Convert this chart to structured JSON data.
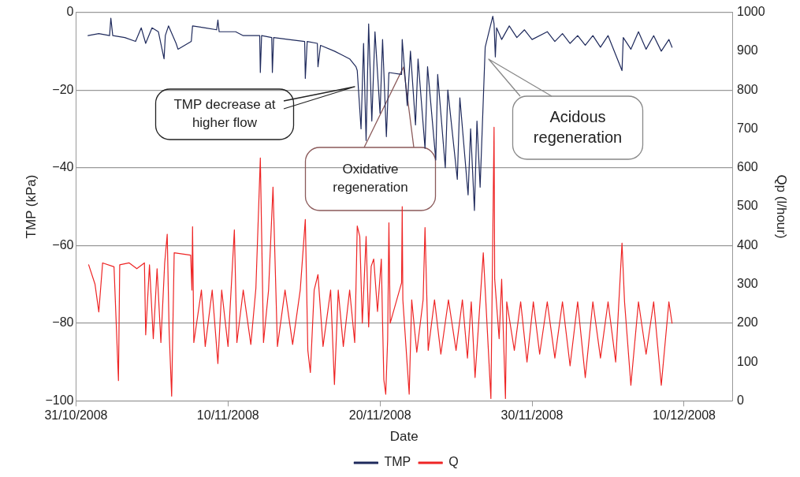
{
  "chart_data": {
    "type": "line",
    "xlabel": "Date",
    "ylabel": "TMP (kPa)",
    "y2label": "Qp (l/hour)",
    "xlim": [
      "2008-10-31",
      "2008-12-13T04:00"
    ],
    "xticks": [
      {
        "value": "2008-10-31",
        "label": "31/10/2008"
      },
      {
        "value": "2008-11-10",
        "label": "10/11/2008"
      },
      {
        "value": "2008-11-20",
        "label": "20/11/2008"
      },
      {
        "value": "2008-11-30",
        "label": "30/11/2008"
      },
      {
        "value": "2008-12-10",
        "label": "10/12/2008"
      }
    ],
    "ylim": [
      -100,
      0
    ],
    "yticks": [
      {
        "value": -100,
        "label": "−100"
      },
      {
        "value": -80,
        "label": "−80"
      },
      {
        "value": -60,
        "label": "−60"
      },
      {
        "value": -40,
        "label": "−40"
      },
      {
        "value": -20,
        "label": "−20"
      },
      0
    ],
    "y2lim": [
      0,
      1000
    ],
    "y2ticks": [
      0,
      100,
      200,
      300,
      400,
      500,
      600,
      700,
      800,
      900,
      1000
    ],
    "grid": "y",
    "legend": "bottom",
    "marker": "none",
    "line_style": "solid",
    "annotations": [
      "TMP decrease at higher flow",
      "Oxidative regeneration",
      "Acidous regeneration"
    ],
    "series": [
      {
        "name": "TMP",
        "color": "#1f2a5c",
        "x": [
          "2008-10-31T19:00",
          "2008-11-01T12:00",
          "2008-11-02T05:00",
          "2008-11-02T07:00",
          "2008-11-02T10:00",
          "2008-11-03T05:00",
          "2008-11-03T22:00",
          "2008-11-04T07:00",
          "2008-11-04T14:00",
          "2008-11-05T00:00",
          "2008-11-05T10:00",
          "2008-11-05T19:00",
          "2008-11-05T21:00",
          "2008-11-06T02:00",
          "2008-11-06T14:00",
          "2008-11-06T17:00",
          "2008-11-07T14:00",
          "2008-11-07T16:00",
          "2008-11-08T12:00",
          "2008-11-09T06:00",
          "2008-11-09T08:00",
          "2008-11-09T10:00",
          "2008-11-10T12:00",
          "2008-11-11T00:00",
          "2008-11-12T02:00",
          "2008-11-12T03:00",
          "2008-11-12T05:00",
          "2008-11-12T21:00",
          "2008-11-12T22:00",
          "2008-11-13T00:00",
          "2008-11-14T00:00",
          "2008-11-15T01:00",
          "2008-11-15T02:00",
          "2008-11-15T05:00",
          "2008-11-15T21:00",
          "2008-11-15T22:00",
          "2008-11-16T02:00",
          "2008-11-17T00:00",
          "2008-11-17T12:00",
          "2008-11-18T00:00",
          "2008-11-18T10:00",
          "2008-11-18T12:00",
          "2008-11-18T18:00",
          "2008-11-18T22:00",
          "2008-11-19T02:00",
          "2008-11-19T06:00",
          "2008-11-19T11:00",
          "2008-11-19T16:00",
          "2008-11-20T00:00",
          "2008-11-20T04:00",
          "2008-11-20T10:00",
          "2008-11-20T14:00",
          "2008-11-21T10:00",
          "2008-11-21T11:00",
          "2008-11-21T19:00",
          "2008-11-22T00:00",
          "2008-11-22T08:00",
          "2008-11-22T12:00",
          "2008-11-22T23:00",
          "2008-11-23T03:00",
          "2008-11-23T16:00",
          "2008-11-23T19:00",
          "2008-11-24T07:00",
          "2008-11-24T11:00",
          "2008-11-25T02:00",
          "2008-11-25T06:00",
          "2008-11-25T19:00",
          "2008-11-25T23:00",
          "2008-11-26T05:00",
          "2008-11-26T09:00",
          "2008-11-26T14:00",
          "2008-11-26T22:00",
          "2008-11-27T10:00",
          "2008-11-27T12:00",
          "2008-11-27T14:00",
          "2008-11-27T16:00",
          "2008-11-28T00:00",
          "2008-11-28T12:00",
          "2008-11-29T00:00",
          "2008-11-29T12:00",
          "2008-11-30T00:00",
          "2008-12-01T00:00",
          "2008-12-01T12:00",
          "2008-12-02T00:00",
          "2008-12-02T12:00",
          "2008-12-03T00:00",
          "2008-12-03T12:00",
          "2008-12-04T00:00",
          "2008-12-04T12:00",
          "2008-12-05T00:00",
          "2008-12-05T22:00",
          "2008-12-06T00:00",
          "2008-12-06T12:00",
          "2008-12-07T00:00",
          "2008-12-07T12:00",
          "2008-12-08T00:00",
          "2008-12-08T12:00",
          "2008-12-09T00:00",
          "2008-12-09T05:00"
        ],
        "values": [
          -6,
          -5.5,
          -6,
          -1.5,
          -6,
          -6.5,
          -7.5,
          -4,
          -8,
          -4,
          -5,
          -12,
          -6,
          -3.5,
          -8,
          -9.5,
          -7.5,
          -3.5,
          -4,
          -4.5,
          -2,
          -5,
          -5,
          -6,
          -6,
          -15.5,
          -6,
          -6.5,
          -15.5,
          -6.5,
          -7,
          -7.5,
          -17,
          -7.5,
          -8,
          -14,
          -8.5,
          -10,
          -11,
          -12,
          -14,
          -15,
          -30,
          -8,
          -33,
          -3,
          -28,
          -5,
          -26,
          -7,
          -32,
          -15.5,
          -16,
          -7,
          -24,
          -10,
          -29,
          -12,
          -35,
          -14,
          -38,
          -16,
          -40,
          -20,
          -43,
          -22,
          -47,
          -30,
          -51,
          -28,
          -45,
          -9,
          -1,
          -3,
          -11.5,
          -4,
          -7,
          -3.5,
          -6.5,
          -4.5,
          -7,
          -5,
          -7.5,
          -5.5,
          -8,
          -6,
          -8.5,
          -6,
          -9,
          -6,
          -15,
          -6.5,
          -9.5,
          -5,
          -9.5,
          -6,
          -10,
          -7,
          -9
        ]
      },
      {
        "name": "Q",
        "color": "#ee2424",
        "axis": "y2",
        "x": [
          "2008-10-31T20:00",
          "2008-11-01T06:00",
          "2008-11-01T12:00",
          "2008-11-01T18:00",
          "2008-11-02T12:00",
          "2008-11-02T19:00",
          "2008-11-02T21:00",
          "2008-11-03T12:00",
          "2008-11-04T00:00",
          "2008-11-04T12:00",
          "2008-11-04T14:00",
          "2008-11-04T20:00",
          "2008-11-05T02:00",
          "2008-11-05T08:00",
          "2008-11-05T14:00",
          "2008-11-05T20:00",
          "2008-11-06T00:00",
          "2008-11-06T03:00",
          "2008-11-06T07:00",
          "2008-11-06T11:00",
          "2008-11-07T13:00",
          "2008-11-07T15:00",
          "2008-11-07T16:00",
          "2008-11-07T18:00",
          "2008-11-08T06:00",
          "2008-11-08T12:00",
          "2008-11-08T23:00",
          "2008-11-09T08:00",
          "2008-11-09T14:00",
          "2008-11-10T00:00",
          "2008-11-10T10:00",
          "2008-11-10T14:00",
          "2008-11-11T00:00",
          "2008-11-11T12:00",
          "2008-11-11T20:00",
          "2008-11-12T03:00",
          "2008-11-12T08:00",
          "2008-11-12T16:00",
          "2008-11-12T23:00",
          "2008-11-13T06:00",
          "2008-11-13T18:00",
          "2008-11-14T06:00",
          "2008-11-14T18:00",
          "2008-11-15T02:00",
          "2008-11-15T06:00",
          "2008-11-15T10:00",
          "2008-11-15T16:00",
          "2008-11-15T22:00",
          "2008-11-16T06:00",
          "2008-11-16T18:00",
          "2008-11-17T00:00",
          "2008-11-17T06:00",
          "2008-11-17T14:00",
          "2008-11-18T00:00",
          "2008-11-18T08:00",
          "2008-11-18T10:00",
          "2008-11-18T12:00",
          "2008-11-18T16:00",
          "2008-11-18T20:00",
          "2008-11-19T02:00",
          "2008-11-19T06:00",
          "2008-11-19T10:00",
          "2008-11-19T14:00",
          "2008-11-19T20:00",
          "2008-11-20T02:00",
          "2008-11-20T04:00",
          "2008-11-20T06:00",
          "2008-11-20T09:00",
          "2008-11-20T12:00",
          "2008-11-20T14:00",
          "2008-11-20T16:00",
          "2008-11-21T10:00",
          "2008-11-21T11:00",
          "2008-11-21T12:00",
          "2008-11-21T22:00",
          "2008-11-22T02:00",
          "2008-11-22T10:00",
          "2008-11-22T20:00",
          "2008-11-22T23:00",
          "2008-11-23T04:00",
          "2008-11-23T14:00",
          "2008-11-24T00:00",
          "2008-11-24T12:00",
          "2008-11-25T00:00",
          "2008-11-25T10:00",
          "2008-11-25T18:00",
          "2008-11-26T00:00",
          "2008-11-26T06:00",
          "2008-11-26T19:00",
          "2008-11-27T07:00",
          "2008-11-27T12:00",
          "2008-11-27T13:00",
          "2008-11-27T20:00",
          "2008-11-28T00:00",
          "2008-11-28T06:00",
          "2008-11-28T08:00",
          "2008-11-28T20:00",
          "2008-11-29T06:00",
          "2008-11-29T16:00",
          "2008-11-30T02:00",
          "2008-11-30T12:00",
          "2008-12-01T00:00",
          "2008-12-01T12:00",
          "2008-12-02T00:00",
          "2008-12-02T12:00",
          "2008-12-03T00:00",
          "2008-12-03T12:00",
          "2008-12-04T00:00",
          "2008-12-04T12:00",
          "2008-12-05T00:00",
          "2008-12-05T12:00",
          "2008-12-05T22:00",
          "2008-12-06T02:00",
          "2008-12-06T12:00",
          "2008-12-07T00:00",
          "2008-12-07T12:00",
          "2008-12-08T00:00",
          "2008-12-08T12:00",
          "2008-12-09T00:00",
          "2008-12-09T05:00"
        ],
        "values": [
          350,
          300,
          229,
          355,
          345,
          52,
          350,
          355,
          340,
          355,
          170,
          350,
          160,
          340,
          150,
          355,
          429,
          180,
          12,
          381,
          375,
          285,
          448,
          150,
          285,
          140,
          285,
          96,
          285,
          140,
          440,
          150,
          285,
          145,
          290,
          625,
          150,
          285,
          550,
          140,
          285,
          145,
          285,
          467,
          130,
          73,
          285,
          325,
          140,
          285,
          42,
          285,
          140,
          285,
          150,
          290,
          450,
          423,
          200,
          423,
          190,
          346,
          365,
          230,
          365,
          200,
          54,
          17,
          158,
          458,
          200,
          304,
          500,
          260,
          17,
          260,
          125,
          260,
          446,
          130,
          260,
          120,
          260,
          130,
          260,
          110,
          255,
          60,
          381,
          6,
          704,
          313,
          160,
          313,
          6,
          255,
          130,
          255,
          100,
          255,
          120,
          255,
          110,
          255,
          90,
          255,
          60,
          255,
          110,
          255,
          100,
          406,
          255,
          40,
          255,
          120,
          255,
          40,
          255,
          200
        ]
      }
    ]
  }
}
